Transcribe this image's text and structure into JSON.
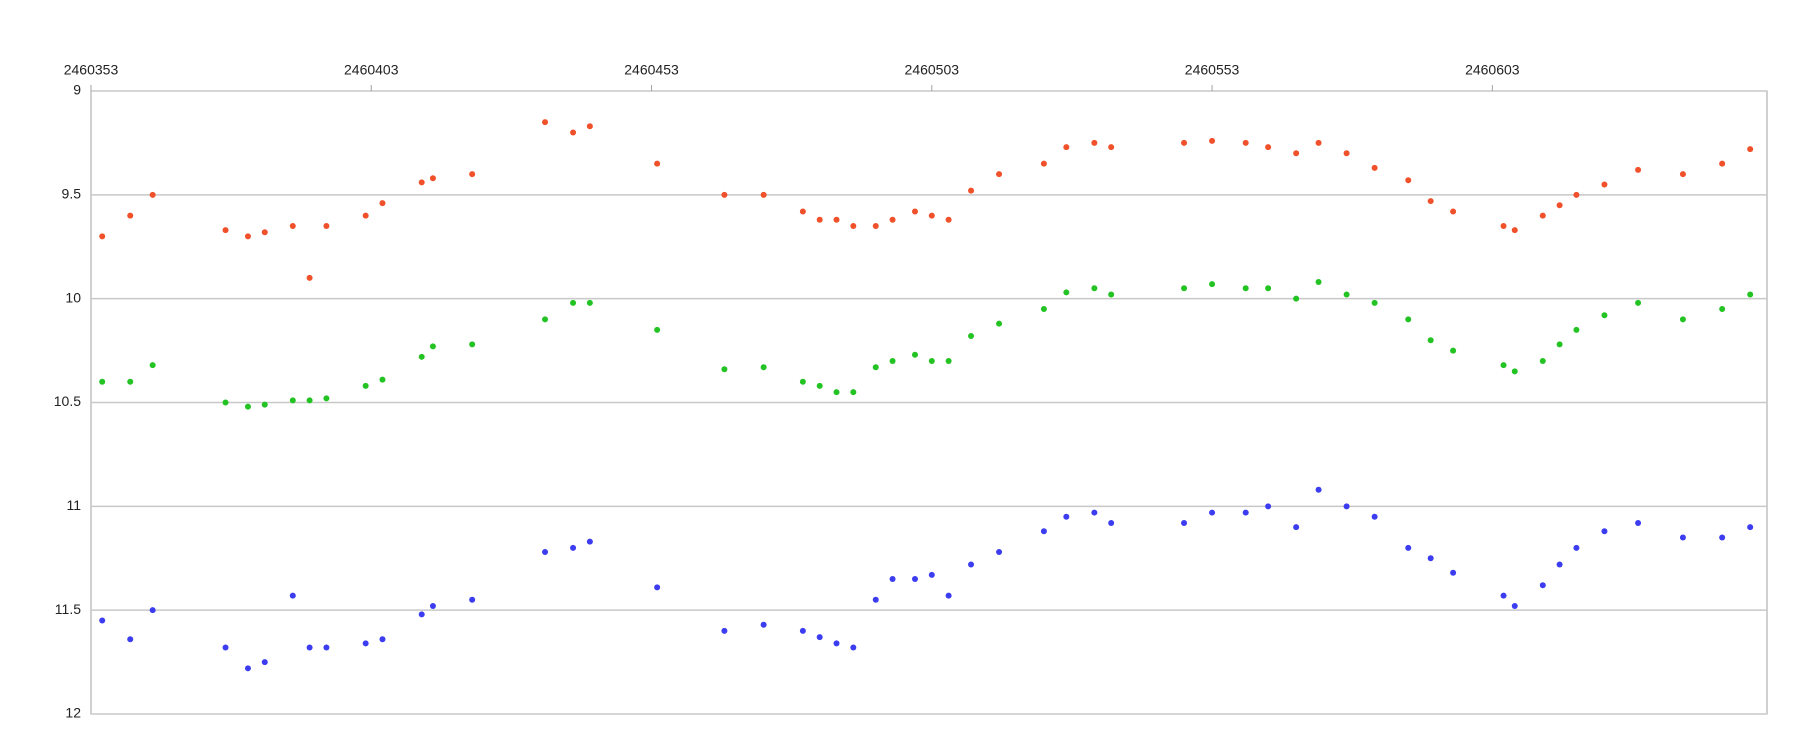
{
  "chart_data": {
    "type": "scatter",
    "x": [
      2460355,
      2460360,
      2460364,
      2460377,
      2460381,
      2460384,
      2460389,
      2460392,
      2460395,
      2460402,
      2460405,
      2460412,
      2460414,
      2460421,
      2460434,
      2460439,
      2460442,
      2460454,
      2460466,
      2460473,
      2460480,
      2460483,
      2460486,
      2460489,
      2460493,
      2460496,
      2460500,
      2460503,
      2460506,
      2460510,
      2460515,
      2460523,
      2460527,
      2460532,
      2460535,
      2460548,
      2460553,
      2460559,
      2460563,
      2460568,
      2460572,
      2460577,
      2460582,
      2460588,
      2460592,
      2460596,
      2460605,
      2460607,
      2460612,
      2460615,
      2460618,
      2460623,
      2460629,
      2460637,
      2460644,
      2460649
    ],
    "series": [
      {
        "color": "#f0502a",
        "values": [
          9.7,
          9.6,
          9.5,
          9.67,
          9.7,
          9.68,
          9.65,
          9.9,
          9.65,
          9.6,
          9.54,
          9.44,
          9.42,
          9.4,
          9.15,
          9.2,
          9.17,
          9.35,
          9.5,
          9.5,
          9.58,
          9.62,
          9.62,
          9.65,
          9.65,
          9.62,
          9.58,
          9.6,
          9.62,
          9.48,
          9.4,
          9.35,
          9.27,
          9.25,
          9.27,
          9.25,
          9.24,
          9.25,
          9.27,
          9.3,
          9.25,
          9.3,
          9.37,
          9.43,
          9.53,
          9.58,
          9.65,
          9.67,
          9.6,
          9.55,
          9.5,
          9.45,
          9.38,
          9.4,
          9.35,
          9.28
        ]
      },
      {
        "color": "#22c322",
        "values": [
          10.4,
          10.4,
          10.32,
          10.5,
          10.52,
          10.51,
          10.49,
          10.49,
          10.48,
          10.42,
          10.39,
          10.28,
          10.23,
          10.22,
          10.1,
          10.02,
          10.02,
          10.15,
          10.34,
          10.33,
          10.4,
          10.42,
          10.45,
          10.45,
          10.33,
          10.3,
          10.27,
          10.3,
          10.3,
          10.18,
          10.12,
          10.05,
          9.97,
          9.95,
          9.98,
          9.95,
          9.93,
          9.95,
          9.95,
          10.0,
          9.92,
          9.98,
          10.02,
          10.1,
          10.2,
          10.25,
          10.32,
          10.35,
          10.3,
          10.22,
          10.15,
          10.08,
          10.02,
          10.1,
          10.05,
          9.98
        ]
      },
      {
        "color": "#3c3cf0",
        "values": [
          11.55,
          11.64,
          11.5,
          11.68,
          11.78,
          11.75,
          11.43,
          11.68,
          11.68,
          11.66,
          11.64,
          11.52,
          11.48,
          11.45,
          11.22,
          11.2,
          11.17,
          11.39,
          11.6,
          11.57,
          11.6,
          11.63,
          11.66,
          11.68,
          11.45,
          11.35,
          11.35,
          11.33,
          11.43,
          11.28,
          11.22,
          11.12,
          11.05,
          11.03,
          11.08,
          11.08,
          11.03,
          11.03,
          11.0,
          11.1,
          10.92,
          11.0,
          11.05,
          11.2,
          11.25,
          11.32,
          11.43,
          11.48,
          11.38,
          11.28,
          11.2,
          11.12,
          11.08,
          11.15,
          11.15,
          11.1
        ]
      }
    ],
    "xlim": [
      2460353,
      2460652
    ],
    "xticks": [
      2460353,
      2460403,
      2460453,
      2460503,
      2460553,
      2460603
    ],
    "ylim": [
      9,
      12
    ],
    "yticks": [
      9,
      9.5,
      10,
      10.5,
      11,
      11.5,
      12
    ],
    "y_inverted": true,
    "x_axis_position": "top",
    "grid": true
  }
}
